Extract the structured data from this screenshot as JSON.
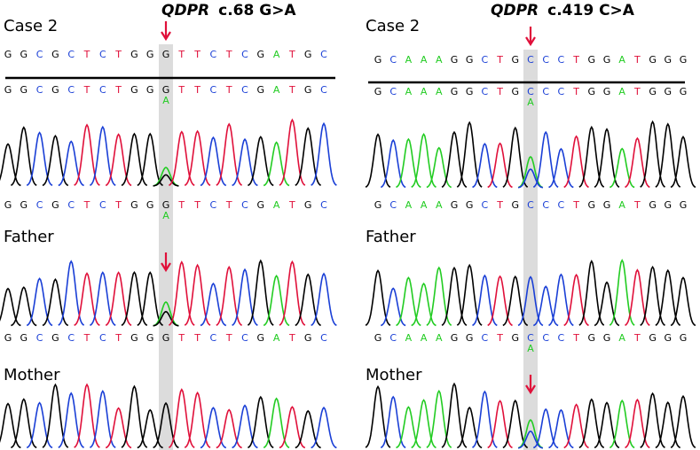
{
  "panels": [
    {
      "gene": "QDPR",
      "variant": "c.68 G>A",
      "reference": [
        "G",
        "G",
        "C",
        "G",
        "C",
        "T",
        "C",
        "T",
        "G",
        "G",
        "G",
        "T",
        "T",
        "C",
        "T",
        "C",
        "G",
        "A",
        "T",
        "G",
        "C"
      ],
      "tracks": [
        {
          "label": "Case 2",
          "sequence": [
            "G",
            "G",
            "C",
            "G",
            "C",
            "T",
            "C",
            "T",
            "G",
            "G",
            "G",
            "T",
            "T",
            "C",
            "T",
            "C",
            "G",
            "A",
            "T",
            "G",
            "C"
          ],
          "secondary": [
            null,
            null,
            null,
            null,
            null,
            null,
            null,
            null,
            null,
            null,
            "A",
            null,
            null,
            null,
            null,
            null,
            null,
            null,
            null,
            null,
            null
          ]
        },
        {
          "label": "Father",
          "sequence": [
            "G",
            "G",
            "C",
            "G",
            "C",
            "T",
            "C",
            "T",
            "G",
            "G",
            "G",
            "T",
            "T",
            "C",
            "T",
            "C",
            "G",
            "A",
            "T",
            "G",
            "C"
          ],
          "secondary": [
            null,
            null,
            null,
            null,
            null,
            null,
            null,
            null,
            null,
            null,
            "A",
            null,
            null,
            null,
            null,
            null,
            null,
            null,
            null,
            null,
            null
          ]
        },
        {
          "label": "Mother",
          "sequence": [
            "G",
            "G",
            "C",
            "G",
            "C",
            "T",
            "C",
            "T",
            "G",
            "G",
            "G",
            "T",
            "T",
            "C",
            "T",
            "C",
            "G",
            "A",
            "T",
            "G",
            "C"
          ]
        }
      ]
    },
    {
      "gene": "QDPR",
      "variant": "c.419 C>A",
      "reference": [
        "G",
        "C",
        "A",
        "A",
        "A",
        "G",
        "G",
        "C",
        "T",
        "G",
        "C",
        "C",
        "C",
        "T",
        "G",
        "G",
        "A",
        "T",
        "G",
        "G",
        "G"
      ],
      "tracks": [
        {
          "label": "Case 2",
          "sequence": [
            "G",
            "C",
            "A",
            "A",
            "A",
            "G",
            "G",
            "C",
            "T",
            "G",
            "C",
            "C",
            "C",
            "T",
            "G",
            "G",
            "A",
            "T",
            "G",
            "G",
            "G"
          ],
          "secondary": [
            null,
            null,
            null,
            null,
            null,
            null,
            null,
            null,
            null,
            null,
            "A",
            null,
            null,
            null,
            null,
            null,
            null,
            null,
            null,
            null,
            null
          ]
        },
        {
          "label": "Father",
          "sequence": [
            "G",
            "C",
            "A",
            "A",
            "A",
            "G",
            "G",
            "C",
            "T",
            "G",
            "C",
            "C",
            "C",
            "T",
            "G",
            "G",
            "A",
            "T",
            "G",
            "G",
            "G"
          ]
        },
        {
          "label": "Mother",
          "sequence": [
            "G",
            "C",
            "A",
            "A",
            "A",
            "G",
            "G",
            "C",
            "T",
            "G",
            "C",
            "C",
            "C",
            "T",
            "G",
            "G",
            "A",
            "T",
            "G",
            "G",
            "G"
          ],
          "secondary": [
            null,
            null,
            null,
            null,
            null,
            null,
            null,
            null,
            null,
            null,
            "A",
            null,
            null,
            null,
            null,
            null,
            null,
            null,
            null,
            null,
            null
          ]
        }
      ]
    }
  ]
}
